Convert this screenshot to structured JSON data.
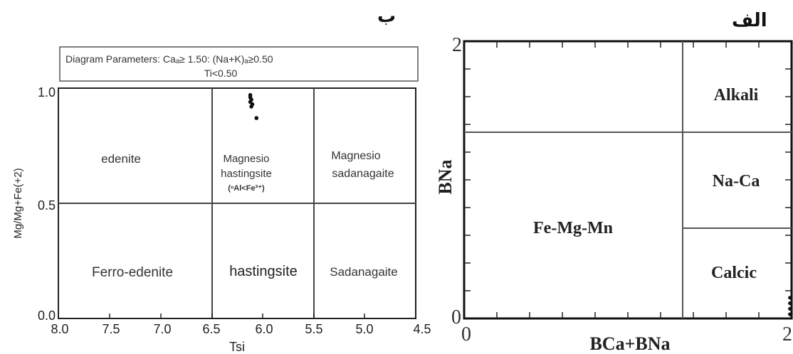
{
  "panels": {
    "left_label": "ب",
    "right_label": "الف"
  },
  "left_diagram": {
    "params_line1": "Diagram Parameters: Caₐ≥ 1.50: (Na+K)ₐ≥0.50",
    "params_line2": "Ti<0.50",
    "xlabel": "Tsi",
    "ylabel": "Mg/Mg+Fe(+2)",
    "x_ticks": [
      "8.0",
      "7.5",
      "7.0",
      "6.5",
      "6.0",
      "5.5",
      "5.0",
      "4.5"
    ],
    "y_ticks": [
      "1.0",
      "0.5",
      "0.0"
    ],
    "fields": {
      "edenite": "edenite",
      "mg_hastingsite_1": "Magnesio",
      "mg_hastingsite_2": "hastingsite",
      "mg_hastingsite_3": "(ⁿAl<Fe³⁺)",
      "mg_sadanagaite_1": "Magnesio",
      "mg_sadanagaite_2": "sadanagaite",
      "ferro_edenite": "Ferro-edenite",
      "hastingsite": "hastingsite",
      "sadanagaite": "Sadanagaite"
    }
  },
  "right_diagram": {
    "xlabel": "BCa+BNa",
    "ylabel": "BNa",
    "x_ticks": [
      "0",
      "2"
    ],
    "y_ticks": [
      "2",
      "0"
    ],
    "fields": {
      "alkali": "Alkali",
      "na_ca": "Na-Ca",
      "fe_mg_mn": "Fe-Mg-Mn",
      "calcic": "Calcic"
    }
  },
  "chart_data": [
    {
      "type": "scatter",
      "xlabel": "Tsi",
      "ylabel": "Mg/Mg+Fe(+2)",
      "xlim": [
        8.0,
        4.5
      ],
      "ylim": [
        0.0,
        1.0
      ],
      "x": [
        6.12,
        6.12,
        6.11,
        6.12,
        6.1,
        6.11,
        6.06
      ],
      "y": [
        0.97,
        0.96,
        0.95,
        0.94,
        0.93,
        0.92,
        0.87
      ]
    },
    {
      "type": "scatter",
      "xlabel": "BCa+BNa",
      "ylabel": "BNa",
      "xlim": [
        0,
        2
      ],
      "ylim": [
        0,
        2
      ],
      "x": [
        1.99,
        1.99,
        1.99,
        1.99
      ],
      "y": [
        0.15,
        0.11,
        0.07,
        0.03
      ]
    }
  ]
}
